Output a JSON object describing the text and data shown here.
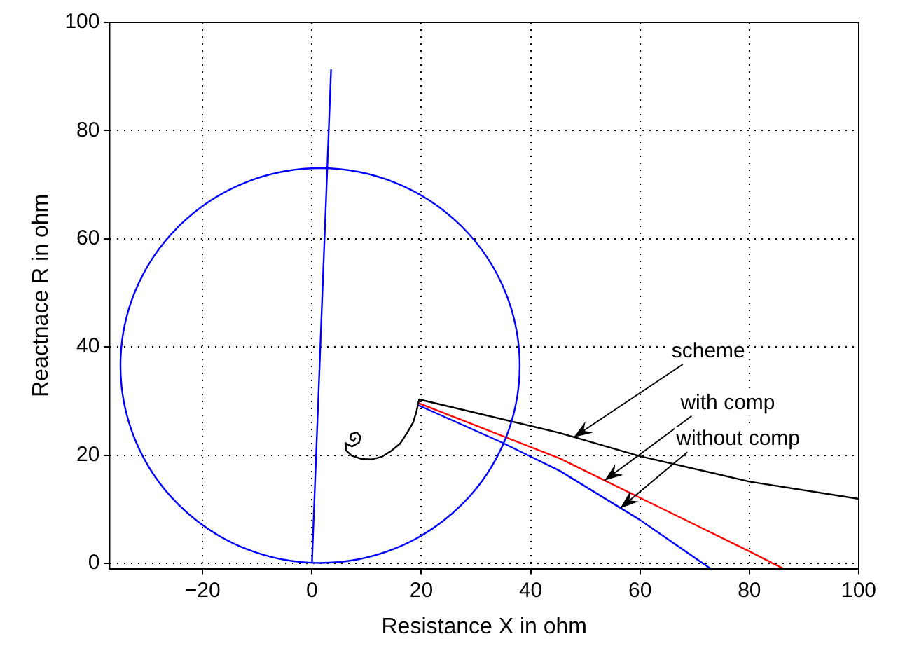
{
  "chart_data": {
    "type": "line",
    "xlabel": "Resistance X in ohm",
    "ylabel": "Reactnace R in ohm",
    "xlim": [
      -37,
      100
    ],
    "ylim": [
      -1,
      100
    ],
    "xticks": [
      -20,
      0,
      20,
      40,
      60,
      80,
      100
    ],
    "yticks": [
      0,
      20,
      40,
      60,
      80,
      100
    ],
    "grid": true,
    "legend": false,
    "marker": "none",
    "line_style": "solid",
    "series": [
      {
        "color": "#0000ff",
        "x": [
          0,
          3.5
        ],
        "values": [
          0,
          91.3
        ]
      },
      {
        "color": "#000000",
        "x": [
          8.0,
          7.6,
          7.0,
          7.2,
          8.2,
          8.9,
          8.6,
          7.3,
          6.1,
          6.2,
          7.3,
          9.0,
          10.9,
          12.8,
          14.4,
          16.1,
          17.4,
          18.5,
          19.1,
          19.6,
          45.3,
          60,
          80,
          100
        ],
        "values": [
          23.2,
          22.6,
          23.0,
          23.9,
          24.2,
          23.4,
          22.3,
          21.6,
          22.2,
          20.9,
          19.9,
          19.3,
          19.2,
          19.7,
          20.7,
          22.1,
          24.1,
          26.0,
          28.0,
          30.3,
          24.1,
          19.8,
          15.1,
          11.9
        ]
      },
      {
        "color": "#ff0000",
        "x": [
          19.5,
          45.3,
          60,
          80,
          86.2
        ],
        "values": [
          29.6,
          19.4,
          12.1,
          2.2,
          -1
        ]
      },
      {
        "color": "#0000ff",
        "x": [
          19.5,
          34.6,
          45.3,
          60,
          72.9
        ],
        "values": [
          29.2,
          22.4,
          17.1,
          8.0,
          -1
        ]
      }
    ],
    "annotations": [
      {
        "text": "scheme",
        "x": 47.9,
        "y": 23.3
      },
      {
        "text": "with comp",
        "x": 53.5,
        "y": 15.3
      },
      {
        "text": "without comp",
        "x": 56.4,
        "y": 10.2
      }
    ]
  }
}
